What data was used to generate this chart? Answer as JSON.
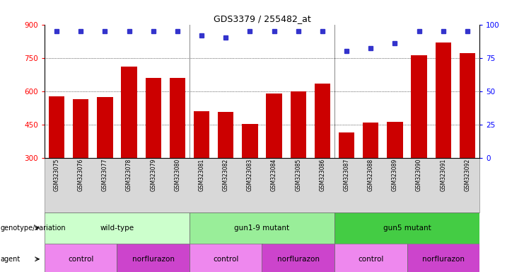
{
  "title": "GDS3379 / 255482_at",
  "samples": [
    "GSM323075",
    "GSM323076",
    "GSM323077",
    "GSM323078",
    "GSM323079",
    "GSM323080",
    "GSM323081",
    "GSM323082",
    "GSM323083",
    "GSM323084",
    "GSM323085",
    "GSM323086",
    "GSM323087",
    "GSM323088",
    "GSM323089",
    "GSM323090",
    "GSM323091",
    "GSM323092"
  ],
  "counts": [
    578,
    565,
    572,
    710,
    660,
    660,
    510,
    505,
    453,
    590,
    600,
    635,
    415,
    460,
    463,
    760,
    820,
    770
  ],
  "percentiles": [
    95,
    95,
    95,
    95,
    95,
    95,
    92,
    90,
    95,
    95,
    95,
    95,
    80,
    82,
    86,
    95,
    95,
    95
  ],
  "bar_color": "#cc0000",
  "dot_color": "#3333cc",
  "ylim_left": [
    300,
    900
  ],
  "yticks_left": [
    300,
    450,
    600,
    750,
    900
  ],
  "ylim_right": [
    0,
    100
  ],
  "yticks_right": [
    0,
    25,
    50,
    75,
    100
  ],
  "groups": [
    {
      "label": "wild-type",
      "start": 0,
      "end": 5,
      "color": "#ccffcc"
    },
    {
      "label": "gun1-9 mutant",
      "start": 6,
      "end": 11,
      "color": "#99ee99"
    },
    {
      "label": "gun5 mutant",
      "start": 12,
      "end": 17,
      "color": "#44cc44"
    }
  ],
  "agents": [
    {
      "label": "control",
      "start": 0,
      "end": 2,
      "color": "#ee88ee"
    },
    {
      "label": "norflurazon",
      "start": 3,
      "end": 5,
      "color": "#cc44cc"
    },
    {
      "label": "control",
      "start": 6,
      "end": 8,
      "color": "#ee88ee"
    },
    {
      "label": "norflurazon",
      "start": 9,
      "end": 11,
      "color": "#cc44cc"
    },
    {
      "label": "control",
      "start": 12,
      "end": 14,
      "color": "#ee88ee"
    },
    {
      "label": "norflurazon",
      "start": 15,
      "end": 17,
      "color": "#cc44cc"
    }
  ],
  "genotype_label": "genotype/variation",
  "agent_label": "agent",
  "legend_count_color": "#cc0000",
  "legend_dot_color": "#3333cc",
  "grid_lines": [
    450,
    600,
    750
  ],
  "group_separators": [
    5.5,
    11.5
  ]
}
